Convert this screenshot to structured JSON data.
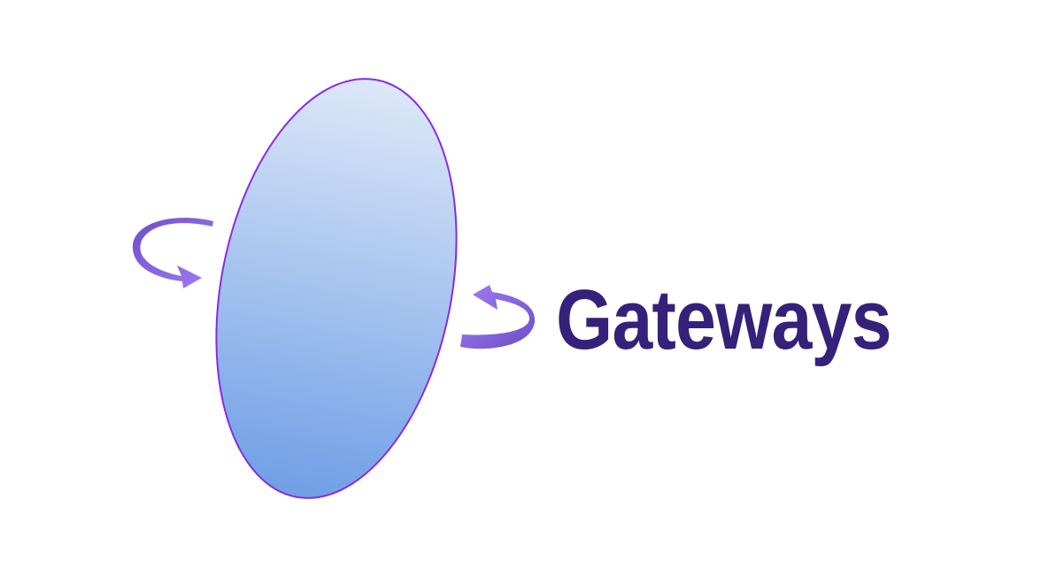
{
  "title": "Gateways",
  "colors": {
    "title": "#35207a",
    "portal_outline": "#8a2be2",
    "portal_gradient_top": "#dde8f8",
    "portal_gradient_bottom": "#6f9fe6",
    "arrow_light": "#9a73ee",
    "arrow_dark": "#6e4fc9"
  },
  "icons": {
    "portal": "gateway-portal-icon",
    "left_arrow": "rotate-arrow-icon",
    "right_arrow": "rotate-arrow-icon"
  }
}
